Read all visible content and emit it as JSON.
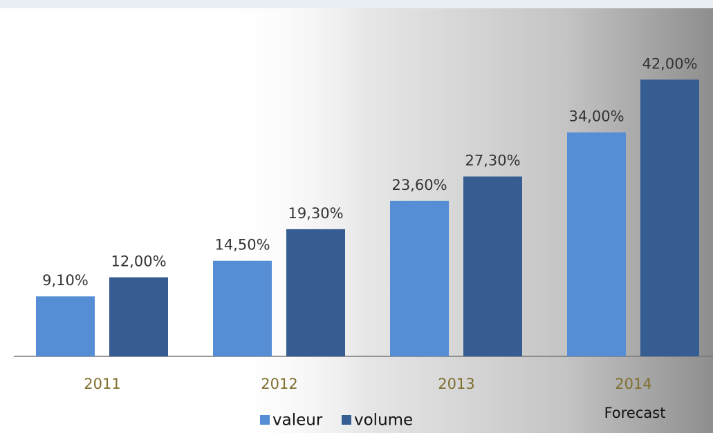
{
  "chart_data": {
    "type": "bar",
    "categories": [
      "2011",
      "2012",
      "2013",
      "2014"
    ],
    "series": [
      {
        "name": "valeur",
        "color": "#558ed5",
        "values": [
          9.1,
          14.5,
          23.6,
          34
        ],
        "value_labels": [
          "9,10%",
          "14,50%",
          "23,60%",
          "34,00%"
        ]
      },
      {
        "name": "volume",
        "color": "#355d92",
        "values": [
          12,
          19.3,
          27.3,
          42
        ],
        "value_labels": [
          "12,00%",
          "19,30%",
          "27,30%",
          "42,00%"
        ]
      }
    ],
    "ylim": [
      0,
      50
    ],
    "annotation": "Forecast"
  }
}
